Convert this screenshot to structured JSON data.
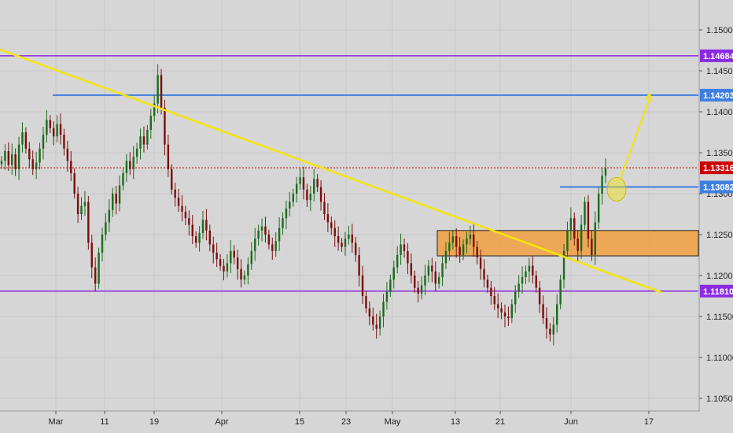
{
  "chart_data": {
    "type": "candlestick",
    "title": "",
    "xlabel": "",
    "ylabel": "",
    "ylim": [
      1.1025,
      1.1535
    ],
    "grid": true,
    "colors": {
      "background": "#d6d6d6",
      "grid": "#c8c8c8",
      "up_candle": "#1e6b1e",
      "down_candle": "#7a1010",
      "trendline": "#f5e50a",
      "horizontal_blue": "#3f7fe0",
      "horizontal_purple": "#8a2be2",
      "zone_fill": "#f0a040",
      "zone_border": "#222222",
      "current_price_line": "#cc0000",
      "arrow": "#f5e50a"
    },
    "y_ticks": [
      "1.15000",
      "1.14500",
      "1.14000",
      "1.13500",
      "1.13000",
      "1.12500",
      "1.12000",
      "1.11500",
      "1.11000",
      "1.10500"
    ],
    "x_ticks": [
      "Mar",
      "11",
      "19",
      "Apr",
      "15",
      "23",
      "May",
      "13",
      "21",
      "Jun",
      "17"
    ],
    "price_tags": [
      {
        "label": "1.14684",
        "value": 1.14684,
        "color": "#8a2be2"
      },
      {
        "label": "1.14203",
        "value": 1.14203,
        "color": "#3f7fe0"
      },
      {
        "label": "1.13316",
        "value": 1.13316,
        "color": "#cc0000"
      },
      {
        "label": "1.13082",
        "value": 1.13082,
        "color": "#3f7fe0"
      },
      {
        "label": "1.11810",
        "value": 1.1181,
        "color": "#8a2be2"
      }
    ],
    "levels": {
      "purple_top": 1.14684,
      "purple_bottom": 1.1181,
      "blue_target": 1.14203,
      "blue_breakout": 1.13082,
      "current_price": 1.13316
    },
    "zone": {
      "from_x": "May 9",
      "to_x": "end",
      "price_low": 1.1224,
      "price_high": 1.1255
    },
    "trendline": {
      "start": {
        "x": "Feb 21",
        "price": 1.1476
      },
      "end": {
        "x": "Jun 12",
        "price": 1.1179
      }
    },
    "projection": {
      "start": {
        "x": "Jun 7",
        "price": 1.1305
      },
      "end": {
        "x": "Jun 11",
        "price": 1.1422
      }
    },
    "series_close": [
      1.134,
      1.1352,
      1.1335,
      1.1348,
      1.133,
      1.136,
      1.1375,
      1.1355,
      1.1342,
      1.133,
      1.1338,
      1.1355,
      1.1372,
      1.139,
      1.138,
      1.137,
      1.1385,
      1.1372,
      1.1355,
      1.134,
      1.1325,
      1.13,
      1.1275,
      1.1285,
      1.129,
      1.124,
      1.121,
      1.119,
      1.1228,
      1.125,
      1.1265,
      1.128,
      1.13,
      1.1288,
      1.131,
      1.1325,
      1.134,
      1.133,
      1.1345,
      1.1355,
      1.137,
      1.136,
      1.1378,
      1.1395,
      1.141,
      1.1445,
      1.1405,
      1.136,
      1.133,
      1.1305,
      1.1295,
      1.1285,
      1.1278,
      1.127,
      1.1262,
      1.1248,
      1.124,
      1.1252,
      1.1268,
      1.1255,
      1.1238,
      1.1228,
      1.122,
      1.1212,
      1.1205,
      1.1215,
      1.123,
      1.1222,
      1.1208,
      1.1195,
      1.12,
      1.1214,
      1.123,
      1.1245,
      1.1255,
      1.126,
      1.125,
      1.1238,
      1.123,
      1.1242,
      1.1258,
      1.127,
      1.1282,
      1.129,
      1.13,
      1.1312,
      1.132,
      1.1305,
      1.1292,
      1.13,
      1.1318,
      1.1308,
      1.129,
      1.1275,
      1.1265,
      1.1258,
      1.1248,
      1.124,
      1.1235,
      1.1245,
      1.125,
      1.124,
      1.1225,
      1.12,
      1.1175,
      1.116,
      1.115,
      1.114,
      1.1135,
      1.115,
      1.1168,
      1.118,
      1.1195,
      1.121,
      1.1225,
      1.1238,
      1.123,
      1.1215,
      1.12,
      1.1185,
      1.1178,
      1.1188,
      1.12,
      1.1212,
      1.1205,
      1.119,
      1.1198,
      1.1215,
      1.123,
      1.124,
      1.1248,
      1.1235,
      1.1225,
      1.1238,
      1.1245,
      1.125,
      1.1235,
      1.1222,
      1.1208,
      1.1195,
      1.1185,
      1.1175,
      1.1165,
      1.116,
      1.1155,
      1.115,
      1.1148,
      1.1165,
      1.118,
      1.119,
      1.1198,
      1.1205,
      1.1212,
      1.12,
      1.1185,
      1.1165,
      1.1148,
      1.1135,
      1.1128,
      1.114,
      1.1165,
      1.1195,
      1.123,
      1.1255,
      1.127,
      1.1245,
      1.123,
      1.1262,
      1.129,
      1.1245,
      1.1225,
      1.1265,
      1.13,
      1.1322,
      1.1331
    ]
  }
}
